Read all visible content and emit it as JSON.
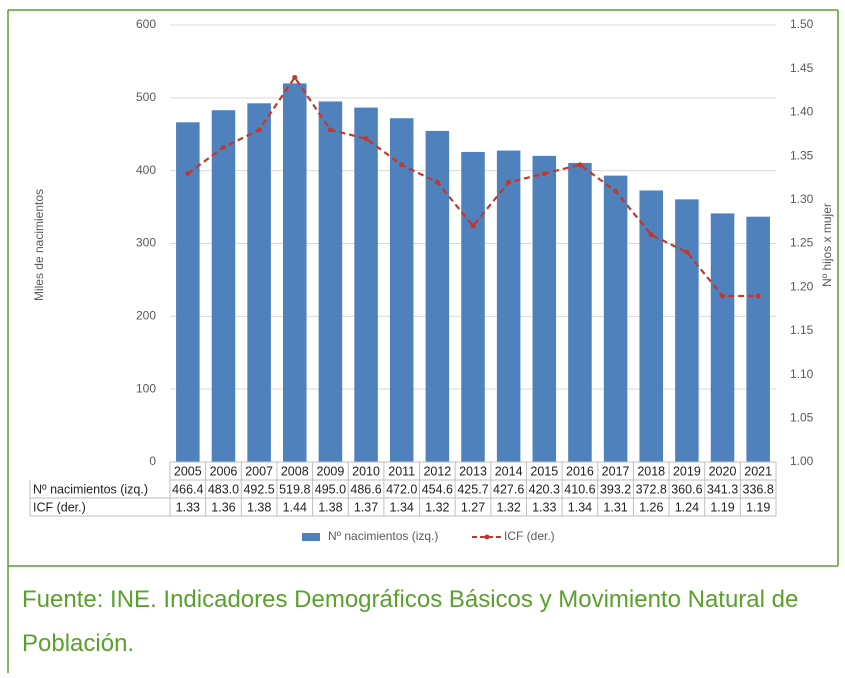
{
  "chart_data": {
    "type": "bar_line",
    "ylabel": "Miles de nacimientos",
    "y2label": "Nº hijos x mujer",
    "categories": [
      "2005",
      "2006",
      "2007",
      "2008",
      "2009",
      "2010",
      "2011",
      "2012",
      "2013",
      "2014",
      "2015",
      "2016",
      "2017",
      "2018",
      "2019",
      "2020",
      "2021"
    ],
    "series": [
      {
        "name": "Nº nacimientos (izq.)",
        "color": "#4f81bd",
        "kind": "bar",
        "values": [
          466.4,
          483.0,
          492.5,
          519.8,
          495.0,
          486.6,
          472.0,
          454.6,
          425.7,
          427.6,
          420.3,
          410.6,
          393.2,
          372.8,
          360.6,
          341.3,
          336.8
        ],
        "value_labels": [
          "466.4",
          "483.0",
          "492.5",
          "519.8",
          "495.0",
          "486.6",
          "472.0",
          "454.6",
          "425.7",
          "427.6",
          "420.3",
          "410.6",
          "393.2",
          "372.8",
          "360.6",
          "341.3",
          "336.8"
        ]
      },
      {
        "name": "ICF (der.)",
        "color": "#c0392b",
        "kind": "line",
        "axis": "y2",
        "values": [
          1.33,
          1.36,
          1.38,
          1.44,
          1.38,
          1.37,
          1.34,
          1.32,
          1.27,
          1.32,
          1.33,
          1.34,
          1.31,
          1.26,
          1.24,
          1.19,
          1.19
        ]
      }
    ],
    "ylim": [
      0,
      600
    ],
    "yticks": [
      0,
      100,
      200,
      300,
      400,
      500,
      600
    ],
    "y2lim": [
      1.0,
      1.5
    ],
    "y2ticks": [
      {
        "value": 1.0,
        "label": "1.00"
      },
      {
        "value": 1.05,
        "label": "1.05"
      },
      {
        "value": 1.1,
        "label": "1.10"
      },
      {
        "value": 1.15,
        "label": "1.15"
      },
      {
        "value": 1.2,
        "label": "1.20"
      },
      {
        "value": 1.25,
        "label": "1.25"
      },
      {
        "value": 1.3,
        "label": "1.30"
      },
      {
        "value": 1.35,
        "label": "1.35"
      },
      {
        "value": 1.4,
        "label": "1.40"
      },
      {
        "value": 1.45,
        "label": "1.45"
      },
      {
        "value": 1.5,
        "label": "1.50"
      }
    ],
    "grid": true,
    "legend": "bottom"
  },
  "caption": "Fuente: INE. Indicadores Demográficos Básicos y Movimiento Natural de Población."
}
